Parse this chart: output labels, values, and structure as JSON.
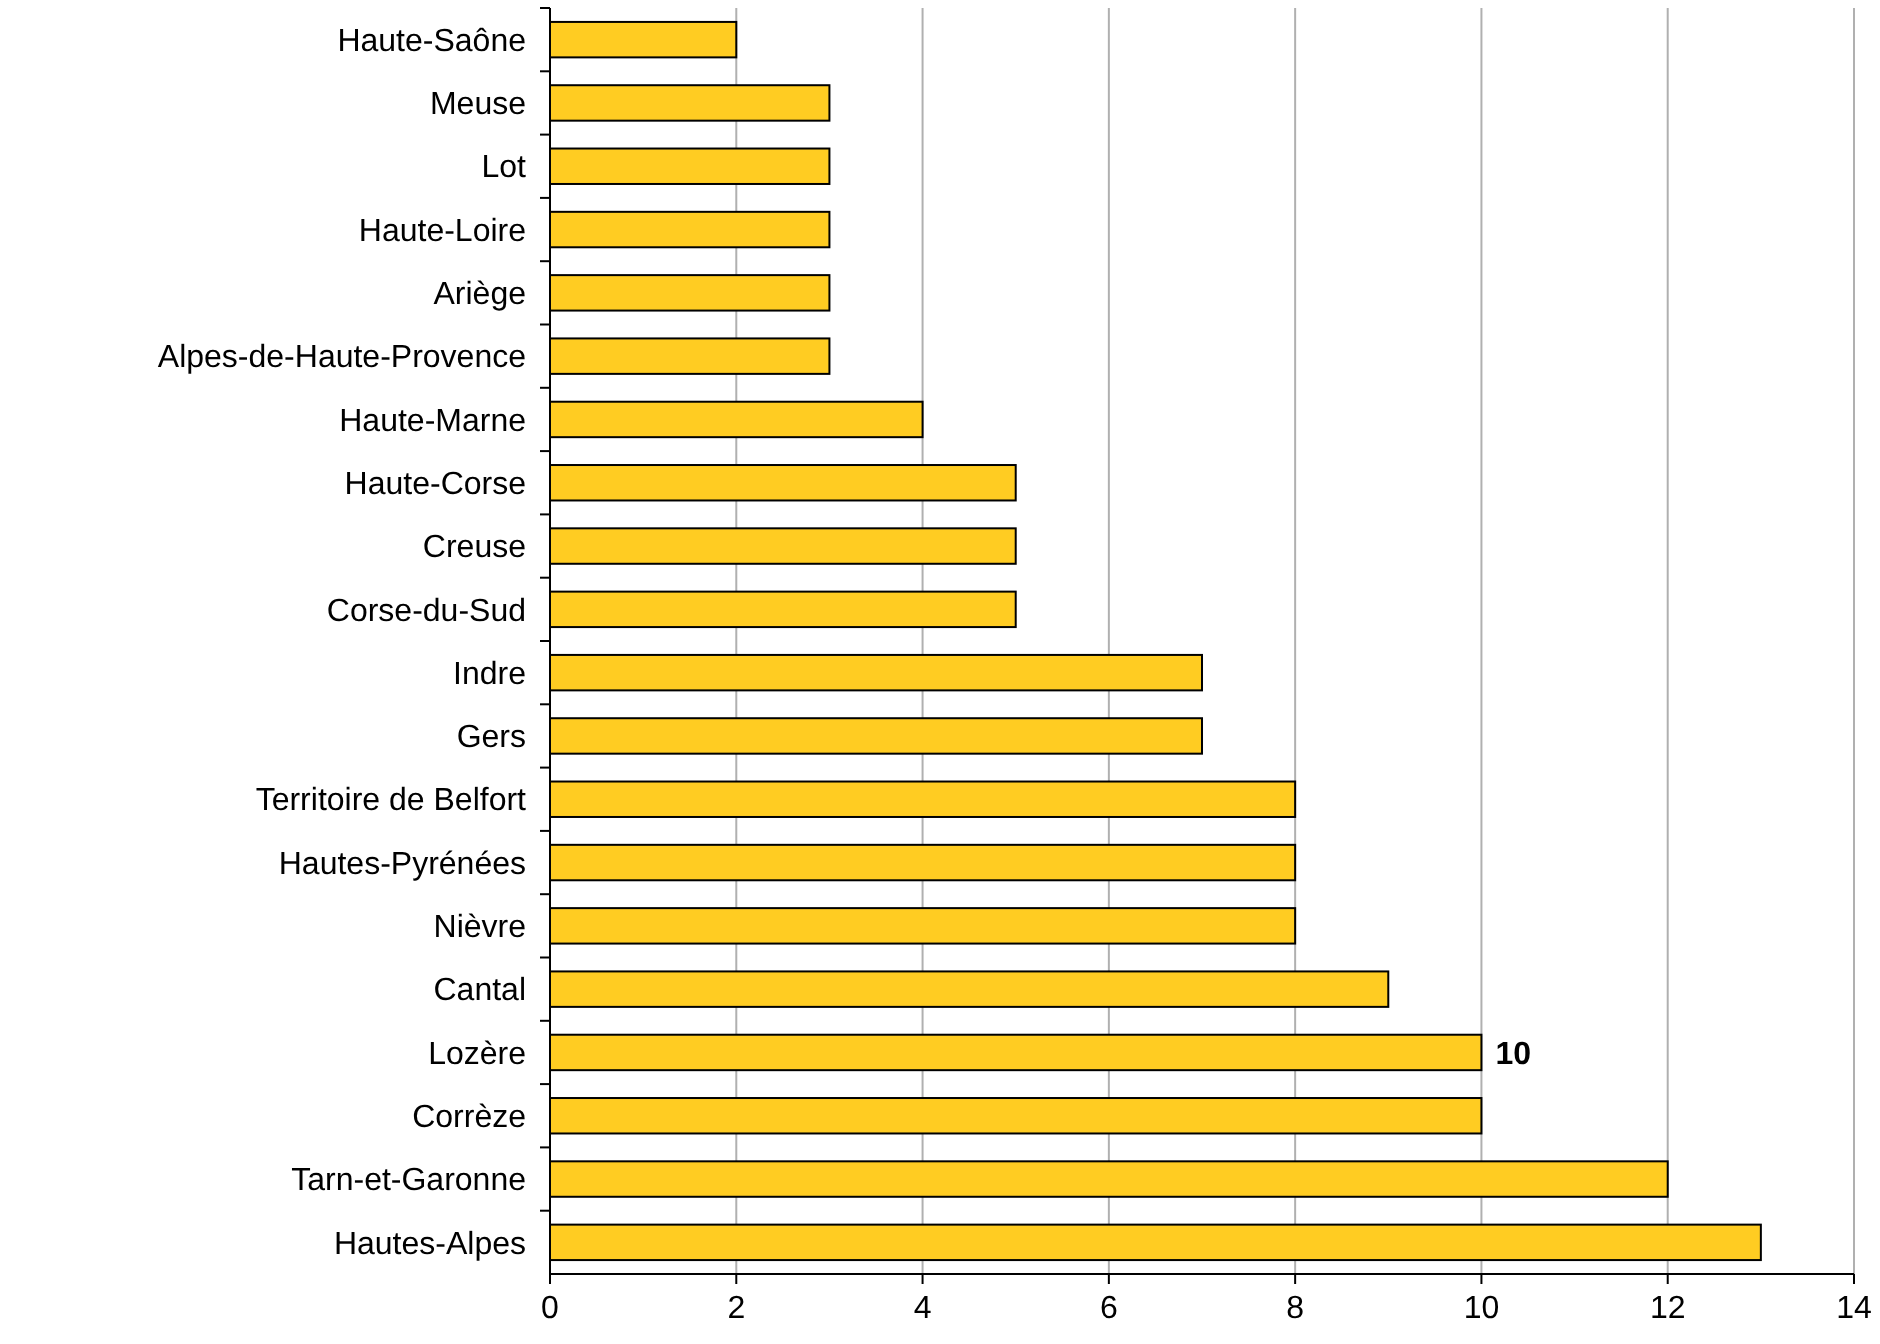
{
  "chart_data": {
    "type": "bar",
    "orientation": "horizontal",
    "categories": [
      "Haute-Saône",
      "Meuse",
      "Lot",
      "Haute-Loire",
      "Ariège",
      "Alpes-de-Haute-Provence",
      "Haute-Marne",
      "Haute-Corse",
      "Creuse",
      "Corse-du-Sud",
      "Indre",
      "Gers",
      "Territoire de Belfort",
      "Hautes-Pyrénées",
      "Nièvre",
      "Cantal",
      "Lozère",
      "Corrèze",
      "Tarn-et-Garonne",
      "Hautes-Alpes"
    ],
    "values": [
      2,
      3,
      3,
      3,
      3,
      3,
      4,
      5,
      5,
      5,
      7,
      7,
      8,
      8,
      8,
      9,
      10,
      10,
      12,
      13
    ],
    "value_labels": [
      null,
      null,
      null,
      null,
      null,
      null,
      null,
      null,
      null,
      null,
      null,
      null,
      null,
      null,
      null,
      null,
      "10",
      null,
      null,
      null
    ],
    "color": "#ffcc22",
    "xlim": [
      0,
      14
    ],
    "xticks": [
      0,
      2,
      4,
      6,
      8,
      10,
      12,
      14
    ],
    "grid": "x"
  }
}
